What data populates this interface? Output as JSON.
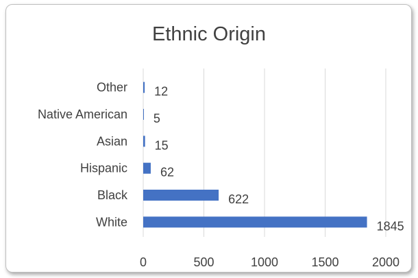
{
  "chart_data": {
    "type": "bar",
    "orientation": "horizontal",
    "title": "Ethnic Origin",
    "categories": [
      "White",
      "Black",
      "Hispanic",
      "Asian",
      "Native American",
      "Other"
    ],
    "values": [
      1845,
      622,
      62,
      15,
      5,
      12
    ],
    "xlim": [
      0,
      2000
    ],
    "x_ticks": [
      0,
      500,
      1000,
      1500,
      2000
    ],
    "xlabel": "",
    "ylabel": "",
    "grid": "vertical",
    "legend": "none",
    "bar_color": "#4472c4",
    "gridline_color": "#d9d9d9",
    "data_labels": true
  }
}
